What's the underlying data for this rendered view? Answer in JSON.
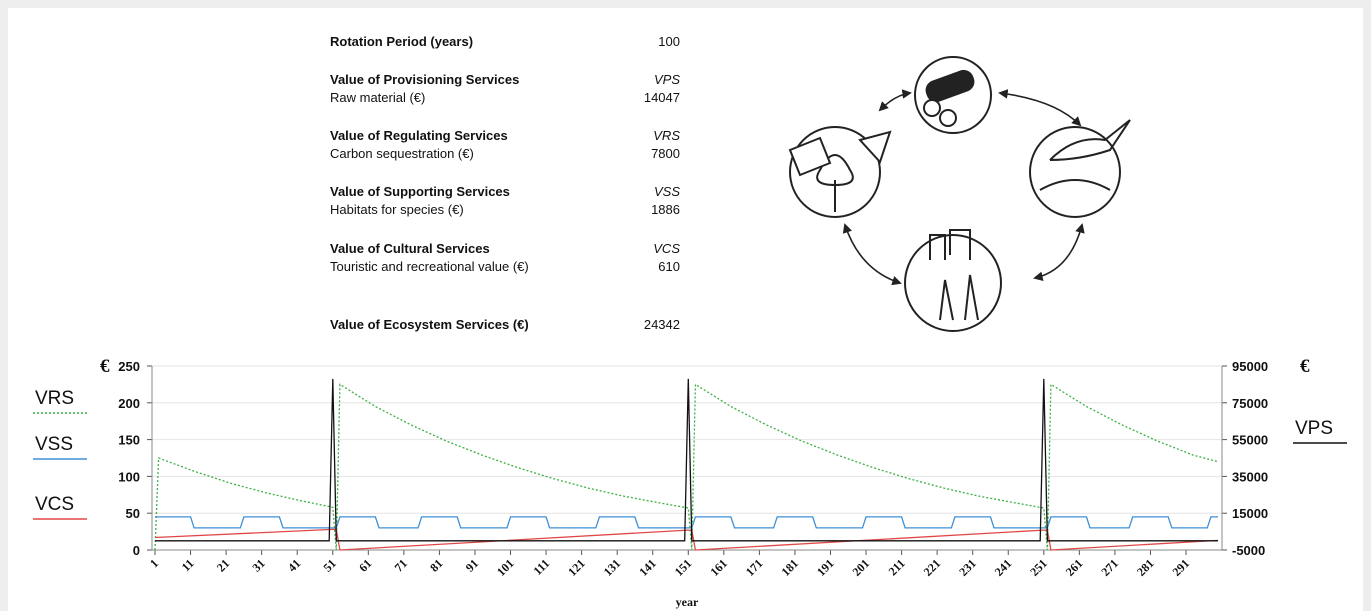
{
  "table": {
    "rows": [
      [
        "Rotation Period (years)",
        100
      ],
      [
        "Value of Provisioning Services",
        "VPS"
      ],
      [
        "Raw material (€)",
        14047
      ],
      [
        "Value of Regulating Services",
        "VRS"
      ],
      [
        "Carbon sequestration (€)",
        7800
      ],
      [
        "Value of Supporting Services",
        "VSS"
      ],
      [
        "Habitats for species (€)",
        1886
      ],
      [
        "Value of Cultural Services",
        "VCS"
      ],
      [
        "Touristic and recreational value (€)",
        610
      ],
      [
        "Value of Ecosystem Services (€)",
        24342
      ]
    ]
  },
  "chart_data": {
    "type": "line",
    "x_label": "year",
    "y_label": "€",
    "y2_label": "€",
    "xlim": [
      1,
      300
    ],
    "xticks": [
      1,
      11,
      21,
      31,
      41,
      51,
      61,
      71,
      81,
      91,
      101,
      111,
      121,
      131,
      141,
      151,
      161,
      171,
      181,
      191,
      201,
      211,
      221,
      231,
      241,
      251,
      261,
      271,
      281,
      291
    ],
    "ylim": [
      0,
      250
    ],
    "yticks": [
      0,
      50,
      100,
      150,
      200,
      250
    ],
    "y2lim": [
      -5000,
      95000
    ],
    "y2ticks": [
      -5000,
      15000,
      35000,
      55000,
      75000,
      95000
    ],
    "grid": true,
    "series": [
      {
        "name": "VRS",
        "color": "#3cb043",
        "dashed": true,
        "x": [
          1,
          2,
          12,
          22,
          32,
          42,
          51,
          52,
          53,
          63,
          73,
          83,
          93,
          103,
          113,
          123,
          133,
          143,
          151,
          152,
          153,
          163,
          173,
          183,
          193,
          203,
          213,
          223,
          233,
          243,
          251,
          252,
          253,
          263,
          273,
          283,
          293,
          300
        ],
        "values": [
          0,
          125,
          107,
          91,
          78,
          67,
          58,
          0,
          225,
          195,
          170,
          148,
          129,
          112,
          97,
          84,
          73,
          64,
          57,
          0,
          225,
          195,
          170,
          148,
          129,
          112,
          97,
          84,
          73,
          64,
          57,
          0,
          225,
          195,
          170,
          148,
          129,
          120
        ]
      },
      {
        "name": "VSS",
        "color": "#3d8fd6",
        "x": [
          1,
          11,
          12,
          25,
          26,
          36,
          37,
          52,
          53,
          63,
          64,
          75,
          76,
          86,
          87,
          100,
          101,
          111,
          112,
          125,
          126,
          136,
          137,
          152,
          153,
          163,
          164,
          175,
          176,
          186,
          187,
          200,
          201,
          211,
          212,
          225,
          226,
          236,
          237,
          252,
          253,
          263,
          264,
          275,
          276,
          286,
          287,
          297,
          298,
          300
        ],
        "values": [
          45,
          45,
          30,
          30,
          45,
          45,
          30,
          30,
          45,
          45,
          30,
          30,
          45,
          45,
          30,
          30,
          45,
          45,
          30,
          30,
          45,
          45,
          30,
          30,
          45,
          45,
          30,
          30,
          45,
          45,
          30,
          30,
          45,
          45,
          30,
          30,
          45,
          45,
          30,
          30,
          45,
          45,
          30,
          30,
          45,
          45,
          30,
          30,
          45,
          45
        ]
      },
      {
        "name": "VCS",
        "color": "#e04848",
        "x": [
          1,
          51,
          52,
          53,
          151,
          152,
          153,
          251,
          252,
          253,
          300
        ],
        "values": [
          17,
          28,
          28,
          0,
          27,
          27,
          0,
          27,
          27,
          0,
          13
        ]
      },
      {
        "name": "VPS",
        "color": "#111111",
        "axis": "y2",
        "x": [
          1,
          50,
          51,
          52,
          150,
          151,
          152,
          250,
          251,
          252,
          300
        ],
        "values": [
          0,
          0,
          88000,
          0,
          0,
          88000,
          0,
          0,
          88000,
          0,
          0
        ]
      }
    ]
  }
}
